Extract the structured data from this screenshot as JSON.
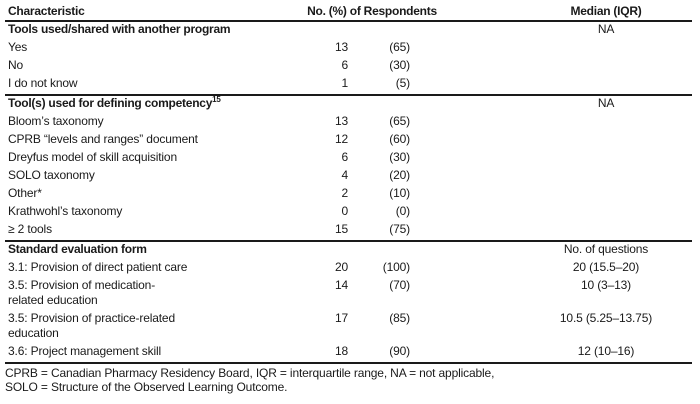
{
  "table": {
    "header": {
      "characteristic": "Characteristic",
      "respondents": "No. (%) of Respondents",
      "median": "Median (IQR)"
    },
    "sections": [
      {
        "title": "Tools used/shared with another program",
        "sup": "",
        "note": "NA",
        "rows": [
          {
            "label": "Yes",
            "n": "13",
            "pct": "(65)",
            "median": ""
          },
          {
            "label": "No",
            "n": "6",
            "pct": "(30)",
            "median": ""
          },
          {
            "label": "I do not know",
            "n": "1",
            "pct": "(5)",
            "median": ""
          }
        ]
      },
      {
        "title": "Tool(s) used for defining competency",
        "sup": "15",
        "note": "NA",
        "rows": [
          {
            "label": "Bloom’s taxonomy",
            "n": "13",
            "pct": "(65)",
            "median": ""
          },
          {
            "label": "CPRB “levels and ranges” document",
            "n": "12",
            "pct": "(60)",
            "median": ""
          },
          {
            "label": "Dreyfus model of skill acquisition",
            "n": "6",
            "pct": "(30)",
            "median": ""
          },
          {
            "label": "SOLO taxonomy",
            "n": "4",
            "pct": "(20)",
            "median": ""
          },
          {
            "label": "Other*",
            "n": "2",
            "pct": "(10)",
            "median": ""
          },
          {
            "label": "Krathwohl’s taxonomy",
            "n": "0",
            "pct": "(0)",
            "median": ""
          },
          {
            "label": "≥ 2 tools",
            "n": "15",
            "pct": "(75)",
            "median": ""
          }
        ]
      },
      {
        "title": "Standard evaluation form",
        "sup": "",
        "note": "No. of questions",
        "rows": [
          {
            "label": "3.1: Provision of direct patient care",
            "n": "20",
            "pct": "(100)",
            "median": "20 (15.5–20)"
          },
          {
            "label": "3.5: Provision of medication-",
            "label2": "related education",
            "n": "14",
            "pct": "(70)",
            "median": "10 (3–13)"
          },
          {
            "label": "3.5: Provision of practice-related",
            "label2": "education",
            "n": "17",
            "pct": "(85)",
            "median": "10.5 (5.25–13.75)"
          },
          {
            "label": "3.6: Project management skill",
            "n": "18",
            "pct": "(90)",
            "median": "12 (10–16)"
          }
        ]
      }
    ],
    "footnotes": [
      "CPRB = Canadian Pharmacy Residency Board, IQR = interquartile range, NA = not applicable,",
      "SOLO = Structure of the Observed Learning Outcome."
    ]
  }
}
